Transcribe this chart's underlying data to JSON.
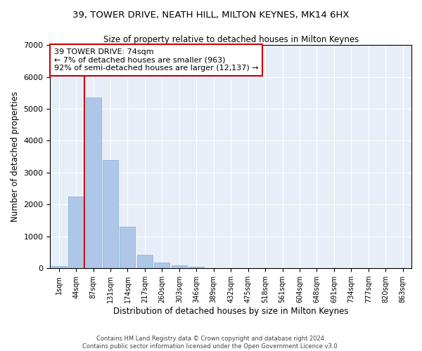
{
  "title": "39, TOWER DRIVE, NEATH HILL, MILTON KEYNES, MK14 6HX",
  "subtitle": "Size of property relative to detached houses in Milton Keynes",
  "xlabel": "Distribution of detached houses by size in Milton Keynes",
  "ylabel": "Number of detached properties",
  "footer_line1": "Contains HM Land Registry data © Crown copyright and database right 2024.",
  "footer_line2": "Contains public sector information licensed under the Open Government Licence v3.0.",
  "annotation_line1": "39 TOWER DRIVE: 74sqm",
  "annotation_line2": "← 7% of detached houses are smaller (963)",
  "annotation_line3": "92% of semi-detached houses are larger (12,137) →",
  "bar_color": "#aec6e8",
  "bar_edge_color": "#7aafd4",
  "redline_color": "#cc0000",
  "annotation_box_color": "#ffffff",
  "annotation_box_edge": "#cc0000",
  "background_color": "#e8eef8",
  "categories": [
    "1sqm",
    "44sqm",
    "87sqm",
    "131sqm",
    "174sqm",
    "217sqm",
    "260sqm",
    "303sqm",
    "346sqm",
    "389sqm",
    "432sqm",
    "475sqm",
    "518sqm",
    "561sqm",
    "604sqm",
    "648sqm",
    "691sqm",
    "734sqm",
    "777sqm",
    "820sqm",
    "863sqm"
  ],
  "values": [
    80,
    2250,
    5350,
    3400,
    1300,
    420,
    175,
    100,
    50,
    0,
    0,
    0,
    0,
    0,
    0,
    0,
    0,
    0,
    0,
    0,
    0
  ],
  "ylim": [
    0,
    7000
  ],
  "yticks": [
    0,
    1000,
    2000,
    3000,
    4000,
    5000,
    6000,
    7000
  ],
  "redline_x": 1.5
}
